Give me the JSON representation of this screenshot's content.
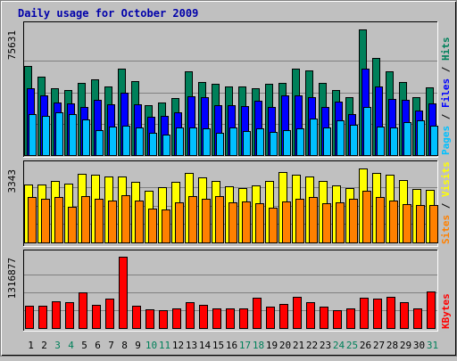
{
  "chart_data": {
    "type": "bar",
    "title": "Daily usage for October 2009",
    "days": [
      "1",
      "2",
      "3",
      "4",
      "5",
      "6",
      "7",
      "8",
      "9",
      "10",
      "11",
      "12",
      "13",
      "14",
      "15",
      "16",
      "17",
      "18",
      "19",
      "20",
      "21",
      "22",
      "23",
      "24",
      "25",
      "26",
      "27",
      "28",
      "29",
      "30",
      "31"
    ],
    "weekend_days": [
      "3",
      "4",
      "10",
      "11",
      "17",
      "18",
      "24",
      "25",
      "31"
    ],
    "colors": {
      "title": "#0000aa",
      "weekday": "#000000",
      "weekend": "#00805a",
      "hits": "#00805a",
      "files": "#0000ff",
      "pages": "#00c0ff",
      "visits": "#ffff00",
      "sites": "#ff8000",
      "kbytes": "#ff0000"
    },
    "panels": [
      {
        "id": "hits-files-pages",
        "max_label": "75631",
        "ymax": 75631,
        "legend": [
          {
            "text": "Pages",
            "color_key": "pages"
          },
          {
            "text": " / ",
            "color_key": "weekday"
          },
          {
            "text": "Files",
            "color_key": "files"
          },
          {
            "text": " / ",
            "color_key": "weekday"
          },
          {
            "text": "Hits",
            "color_key": "hits"
          }
        ],
        "series": [
          {
            "name": "Hits",
            "color_key": "hits",
            "values": [
              53800,
              47000,
              40000,
              38900,
              43400,
              45700,
              41500,
              51900,
              44500,
              30100,
              31600,
              34300,
              50500,
              43800,
              42700,
              41300,
              41100,
              40300,
              42800,
              43600,
              51800,
              50800,
              43400,
              39200,
              34900,
              75631,
              58500,
              50500,
              44000,
              34700,
              40700
            ]
          },
          {
            "name": "Files",
            "color_key": "files",
            "values": [
              40000,
              35700,
              31600,
              31200,
              28900,
              33000,
              30500,
              37500,
              30800,
              23200,
              23800,
              26000,
              35600,
              34600,
              30000,
              30000,
              29700,
              32800,
              28800,
              36000,
              35900,
              34700,
              29100,
              32000,
              24500,
              52200,
              41500,
              33800,
              33500,
              26600,
              30900
            ]
          },
          {
            "name": "Pages",
            "color_key": "pages",
            "values": [
              24700,
              23600,
              25800,
              24700,
              21500,
              15000,
              17200,
              17500,
              16800,
              13400,
              12200,
              16500,
              16700,
              16200,
              13600,
              16800,
              14700,
              16000,
              13800,
              14800,
              16000,
              21800,
              16500,
              20900,
              18300,
              28900,
              17200,
              16800,
              19800,
              21000,
              17900
            ]
          }
        ]
      },
      {
        "id": "visits-sites",
        "max_label": "3343",
        "ymax": 3343,
        "legend": [
          {
            "text": "Sites",
            "color_key": "sites"
          },
          {
            "text": " / ",
            "color_key": "weekday"
          },
          {
            "text": "Visits",
            "color_key": "visits"
          }
        ],
        "series": [
          {
            "name": "Visits",
            "color_key": "visits",
            "values": [
              2620,
              2620,
              2790,
              2660,
              3110,
              3060,
              2990,
              2980,
              2730,
              2340,
              2500,
              2720,
              3140,
              2940,
              2760,
              2530,
              2460,
              2590,
              2780,
              3170,
              3070,
              2990,
              2760,
              2580,
              2470,
              3343,
              3140,
              3060,
              2810,
              2420,
              2360
            ]
          },
          {
            "name": "Sites",
            "color_key": "sites",
            "values": [
              2040,
              1980,
              2040,
              1600,
              2110,
              1980,
              1880,
              2120,
              1880,
              1550,
              1510,
              1800,
              2080,
              1980,
              2080,
              1800,
              1870,
              1760,
              1560,
              1840,
              1960,
              2040,
              1760,
              1810,
              1960,
              2340,
              2070,
              1900,
              1740,
              1710,
              1710
            ]
          }
        ]
      },
      {
        "id": "kbytes",
        "max_label": "1316877",
        "ymax": 1316877,
        "legend": [
          {
            "text": "KBytes",
            "color_key": "kbytes"
          }
        ],
        "series": [
          {
            "name": "KBytes",
            "color_key": "kbytes",
            "values": [
              410000,
              410000,
              490000,
              470000,
              660000,
              420000,
              550000,
              1316877,
              410000,
              340000,
              330000,
              360000,
              480000,
              420000,
              370000,
              360000,
              370000,
              560000,
              400000,
              440000,
              580000,
              480000,
              390000,
              330000,
              370000,
              560000,
              550000,
              570000,
              480000,
              370000,
              670000
            ]
          }
        ]
      }
    ]
  }
}
